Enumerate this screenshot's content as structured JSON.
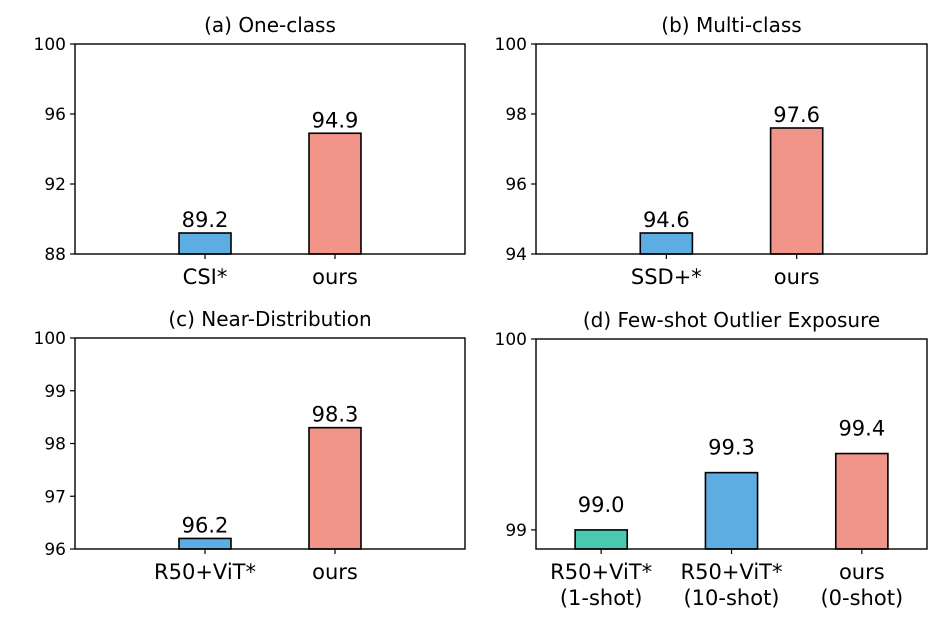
{
  "colors": {
    "blue": "#5DADE2",
    "pink": "#F1948A",
    "green": "#48C9B0",
    "edge": "#000000"
  },
  "chart_data": [
    {
      "type": "bar",
      "title": "(a) One-class",
      "categories": [
        "CSI*",
        "ours"
      ],
      "values": [
        89.2,
        94.9
      ],
      "labels": [
        "89.2",
        "94.9"
      ],
      "colors": [
        "blue",
        "pink"
      ],
      "ylim": [
        88,
        100
      ],
      "yticks": [
        88,
        92,
        96,
        100
      ],
      "xlim": [
        -1,
        2
      ],
      "grid": false
    },
    {
      "type": "bar",
      "title": "(b) Multi-class",
      "categories": [
        "SSD+*",
        "ours"
      ],
      "values": [
        94.6,
        97.6
      ],
      "labels": [
        "94.6",
        "97.6"
      ],
      "colors": [
        "blue",
        "pink"
      ],
      "ylim": [
        94,
        100
      ],
      "yticks": [
        94,
        96,
        98,
        100
      ],
      "xlim": [
        -1,
        2
      ],
      "grid": false
    },
    {
      "type": "bar",
      "title": "(c) Near-Distribution",
      "categories": [
        "R50+ViT*",
        "ours"
      ],
      "values": [
        96.2,
        98.3
      ],
      "labels": [
        "96.2",
        "98.3"
      ],
      "colors": [
        "blue",
        "pink"
      ],
      "ylim": [
        96,
        100
      ],
      "yticks": [
        96,
        97,
        98,
        99,
        100
      ],
      "xlim": [
        -1,
        2
      ],
      "grid": false
    },
    {
      "type": "bar",
      "title": "(d) Few-shot Outlier Exposure",
      "categories": [
        "R50+ViT*\n(1-shot)",
        "R50+ViT*\n(10-shot)",
        "ours\n(0-shot)"
      ],
      "values": [
        99.0,
        99.3,
        99.4
      ],
      "labels": [
        "99.0",
        "99.3",
        "99.4"
      ],
      "colors": [
        "green",
        "blue",
        "pink"
      ],
      "ylim": [
        98.9,
        100
      ],
      "yticks": [
        99,
        100
      ],
      "xlim": [
        -0.5,
        2.5
      ],
      "grid": false
    }
  ]
}
